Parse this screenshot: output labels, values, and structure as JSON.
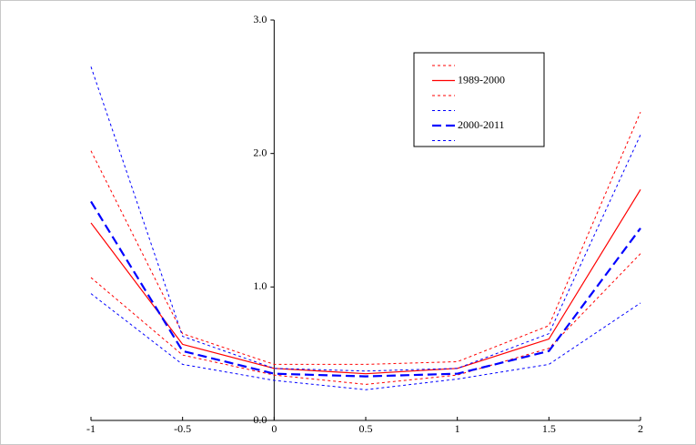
{
  "chart_data": {
    "type": "line",
    "x": [
      -1,
      -0.5,
      0,
      0.5,
      1,
      1.5,
      2
    ],
    "xlim": [
      -1,
      2
    ],
    "xticks": [
      -1,
      -0.5,
      0,
      0.5,
      1,
      1.5,
      2
    ],
    "ylim": [
      0,
      3
    ],
    "yticks": [
      {
        "value": 0,
        "label": "0.0"
      },
      {
        "value": 1,
        "label": "1.0"
      },
      {
        "value": 2,
        "label": "2.0"
      },
      {
        "value": 3,
        "label": "3.0"
      }
    ],
    "grid": false,
    "legend": "top-right",
    "series": [
      {
        "color": "#ff0000",
        "dash": "dotted",
        "values": [
          2.02,
          0.65,
          0.42,
          0.42,
          0.44,
          0.71,
          2.31
        ]
      },
      {
        "name": "1989-2000",
        "color": "#ff0000",
        "dash": "solid",
        "values": [
          1.48,
          0.57,
          0.39,
          0.35,
          0.39,
          0.61,
          1.73
        ]
      },
      {
        "color": "#ff0000",
        "dash": "dotted",
        "values": [
          1.07,
          0.49,
          0.34,
          0.27,
          0.34,
          0.54,
          1.25
        ]
      },
      {
        "color": "#0000ff",
        "dash": "dotted",
        "values": [
          2.65,
          0.63,
          0.39,
          0.37,
          0.39,
          0.65,
          2.14
        ]
      },
      {
        "name": "2000-2011",
        "color": "#0000ff",
        "dash": "dashed",
        "values": [
          1.64,
          0.52,
          0.35,
          0.33,
          0.35,
          0.52,
          1.44
        ]
      },
      {
        "color": "#0000ff",
        "dash": "dotted",
        "values": [
          0.95,
          0.42,
          0.3,
          0.23,
          0.31,
          0.42,
          0.88
        ]
      }
    ]
  }
}
